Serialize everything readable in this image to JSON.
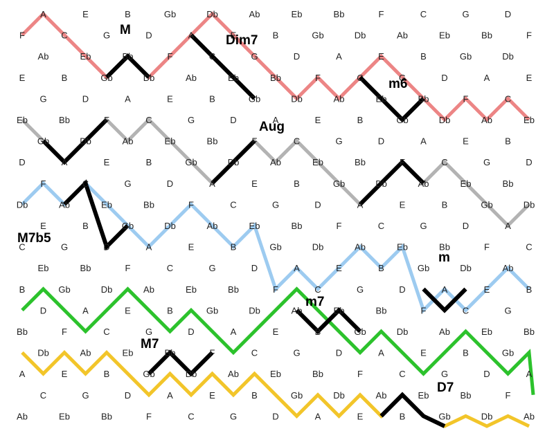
{
  "rows": [
    [
      "A",
      "E",
      "B",
      "Gb",
      "Db",
      "Ab",
      "Eb",
      "Bb",
      "F",
      "C",
      "G",
      "D"
    ],
    [
      "F",
      "C",
      "G",
      "D",
      "A",
      "E",
      "B",
      "Gb",
      "Db",
      "Ab",
      "Eb",
      "Bb",
      "F"
    ],
    [
      "Ab",
      "Eb",
      "Bb",
      "F",
      "C",
      "G",
      "D",
      "A",
      "E",
      "B",
      "Gb",
      "Db"
    ],
    [
      "E",
      "B",
      "Gb",
      "Db",
      "Ab",
      "Eb",
      "Bb",
      "F",
      "C",
      "G",
      "D",
      "A",
      "E"
    ],
    [
      "G",
      "D",
      "A",
      "E",
      "B",
      "Gb",
      "Db",
      "Ab",
      "Eb",
      "Bb",
      "F",
      "C"
    ],
    [
      "Eb",
      "Bb",
      "F",
      "C",
      "G",
      "D",
      "A",
      "E",
      "B",
      "Gb",
      "Db",
      "Ab",
      "Eb"
    ],
    [
      "Gb",
      "Db",
      "Ab",
      "Eb",
      "Bb",
      "F",
      "C",
      "G",
      "D",
      "A",
      "E",
      "B"
    ],
    [
      "D",
      "A",
      "E",
      "B",
      "Gb",
      "Db",
      "Ab",
      "Eb",
      "Bb",
      "F",
      "C",
      "G",
      "D"
    ],
    [
      "F",
      "C",
      "G",
      "D",
      "A",
      "E",
      "B",
      "Gb",
      "Db",
      "Ab",
      "Eb",
      "Bb"
    ],
    [
      "Db",
      "Ab",
      "Eb",
      "Bb",
      "F",
      "C",
      "G",
      "D",
      "A",
      "E",
      "B",
      "Gb",
      "Db"
    ],
    [
      "E",
      "B",
      "Gb",
      "Db",
      "Ab",
      "Eb",
      "Bb",
      "F",
      "C",
      "G",
      "D",
      "A"
    ],
    [
      "C",
      "G",
      "D",
      "A",
      "E",
      "B",
      "Gb",
      "Db",
      "Ab",
      "Eb",
      "Bb",
      "F",
      "C"
    ],
    [
      "Eb",
      "Bb",
      "F",
      "C",
      "G",
      "D",
      "A",
      "E",
      "B",
      "Gb",
      "Db",
      "Ab"
    ],
    [
      "B",
      "Gb",
      "Db",
      "Ab",
      "Eb",
      "Bb",
      "F",
      "C",
      "G",
      "D",
      "A",
      "E",
      "B"
    ],
    [
      "D",
      "A",
      "E",
      "B",
      "Gb",
      "Db",
      "Ab",
      "Eb",
      "Bb",
      "F",
      "C",
      "G"
    ],
    [
      "Bb",
      "F",
      "C",
      "G",
      "D",
      "A",
      "E",
      "B",
      "Gb",
      "Db",
      "Ab",
      "Eb",
      "Bb"
    ],
    [
      "Db",
      "Ab",
      "Eb",
      "Bb",
      "F",
      "C",
      "G",
      "D",
      "A",
      "E",
      "B",
      "Gb"
    ],
    [
      "A",
      "E",
      "B",
      "Gb",
      "Db",
      "Ab",
      "Eb",
      "Bb",
      "F",
      "C",
      "G",
      "D",
      "A"
    ],
    [
      "C",
      "G",
      "D",
      "A",
      "E",
      "B",
      "Gb",
      "Db",
      "Ab",
      "Eb",
      "Bb",
      "F"
    ],
    [
      "Ab",
      "Eb",
      "Bb",
      "F",
      "C",
      "G",
      "D",
      "A",
      "E",
      "B",
      "Gb",
      "Db",
      "Ab"
    ]
  ],
  "chord_labels": [
    "M",
    "Dim7",
    "m6",
    "Aug",
    "M7b5",
    "m",
    "m7",
    "M7",
    "D7"
  ],
  "colors": {
    "red": "#ec8585",
    "gray": "#b3b3b3",
    "blue": "#9dcbf0",
    "green": "#2cc22c",
    "yellow": "#f2c52a",
    "black": "#000000"
  }
}
